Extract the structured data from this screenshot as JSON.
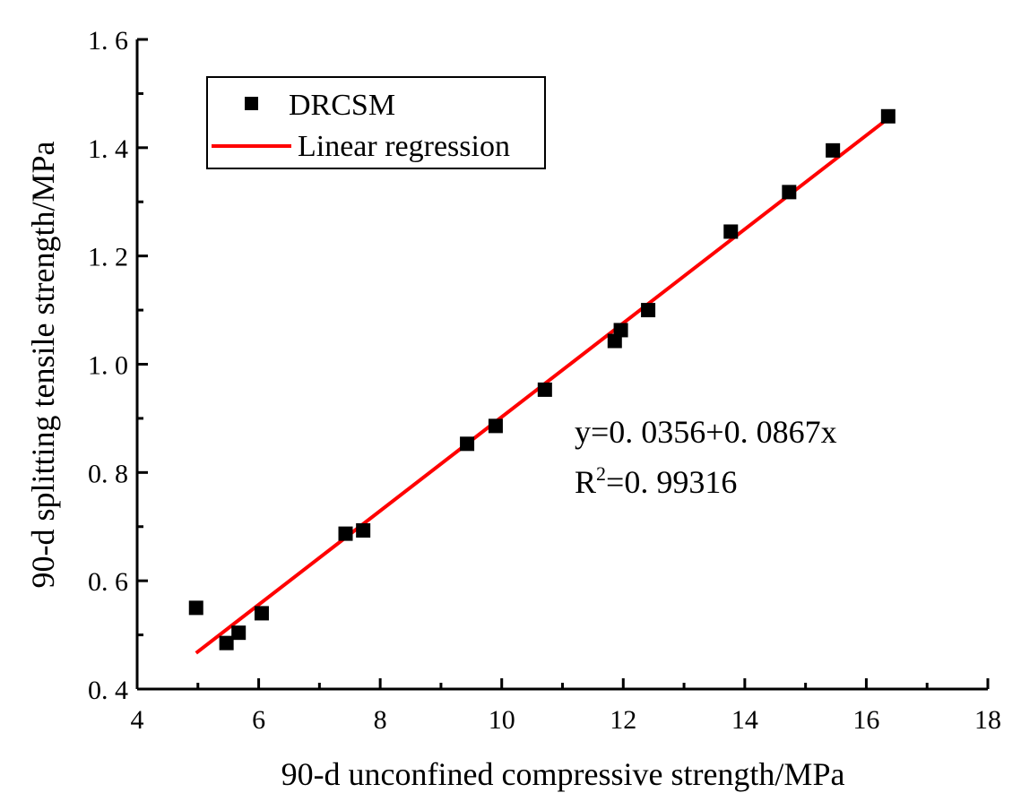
{
  "chart_data": {
    "type": "scatter",
    "title": "",
    "xlabel": "90-d unconfined compressive strength/MPa",
    "ylabel": "90-d splitting tensile strength/MPa",
    "xlim": [
      4,
      18
    ],
    "ylim": [
      0.4,
      1.6
    ],
    "x_ticks": [
      4,
      6,
      8,
      10,
      12,
      14,
      16,
      18
    ],
    "x_tick_labels": [
      "4",
      "6",
      "8",
      "10",
      "12",
      "14",
      "16",
      "18"
    ],
    "y_ticks": [
      0.4,
      0.6,
      0.8,
      1.0,
      1.2,
      1.4,
      1.6
    ],
    "y_tick_labels": [
      "0. 4",
      "0. 6",
      "0. 8",
      "1. 0",
      "1. 2",
      "1. 4",
      "1. 6"
    ],
    "grid": false,
    "legend_position": "top-left",
    "series": [
      {
        "name": "DRCSM",
        "kind": "scatter",
        "marker": "square",
        "color": "#000000",
        "x": [
          4.97,
          5.47,
          5.67,
          6.05,
          7.43,
          7.72,
          9.43,
          9.9,
          10.71,
          11.86,
          11.96,
          12.41,
          13.77,
          14.73,
          15.45,
          16.36
        ],
        "y": [
          0.55,
          0.485,
          0.504,
          0.54,
          0.687,
          0.693,
          0.853,
          0.886,
          0.953,
          1.043,
          1.063,
          1.1,
          1.245,
          1.318,
          1.395,
          1.458
        ]
      },
      {
        "name": "Linear regression",
        "kind": "line",
        "color": "#ff0000",
        "intercept": 0.0356,
        "slope": 0.0867,
        "x_range": [
          4.97,
          16.36
        ]
      }
    ],
    "annotations": {
      "equation": "y=0. 0356+0. 0867x",
      "r2_prefix": "R",
      "r2_superscript": "2",
      "r2_value": "=0. 99316"
    }
  }
}
